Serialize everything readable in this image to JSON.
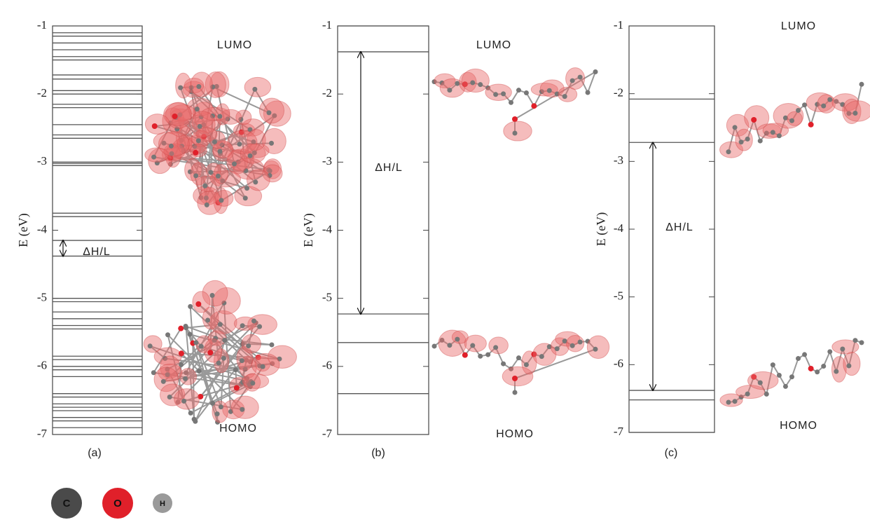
{
  "chart_data": [
    {
      "type": "energy-levels",
      "ylabel": "E (eV)",
      "ylim": [
        -7,
        -1
      ],
      "yticks": [
        -1,
        -2,
        -3,
        -4,
        -5,
        -6,
        -7
      ],
      "levels": [
        -1.1,
        -1.15,
        -1.25,
        -1.35,
        -1.45,
        -1.5,
        -1.72,
        -1.78,
        -1.95,
        -2.0,
        -2.15,
        -2.2,
        -2.45,
        -2.6,
        -2.65,
        -3.0,
        -3.02,
        -3.05,
        -3.75,
        -3.8,
        -4.15,
        -4.38,
        -5.0,
        -5.05,
        -5.2,
        -5.3,
        -5.4,
        -5.45,
        -5.85,
        -5.9,
        -6.0,
        -6.05,
        -6.15,
        -6.4,
        -6.45,
        -6.55,
        -6.6,
        -6.65,
        -6.75,
        -6.8,
        -6.9
      ],
      "gap": {
        "label": "ΔH/L",
        "homo": -4.38,
        "lumo": -4.15
      },
      "lumo_label": "LUMO",
      "homo_label": "HOMO",
      "caption": "(a)",
      "color": "#555555"
    },
    {
      "type": "energy-levels",
      "ylabel": "E (eV)",
      "ylim": [
        -7,
        -1
      ],
      "yticks": [
        -1,
        -2,
        -3,
        -4,
        -5,
        -6,
        -7
      ],
      "levels": [
        -1.0,
        -1.38,
        -5.23,
        -5.65,
        -6.4
      ],
      "gap": {
        "label": "ΔH/L",
        "homo": -5.23,
        "lumo": -1.38
      },
      "lumo_label": "LUMO",
      "homo_label": "HOMO",
      "caption": "(b)",
      "color": "#555555"
    },
    {
      "type": "energy-levels",
      "ylabel": "E (eV)",
      "ylim": [
        -7,
        -1
      ],
      "yticks": [
        -1,
        -2,
        -3,
        -4,
        -5,
        -6,
        -7
      ],
      "levels": [
        -2.08,
        -2.72,
        -6.38,
        -6.52,
        -7.0
      ],
      "gap": {
        "label": "ΔH/L",
        "homo": -6.38,
        "lumo": -2.72
      },
      "lumo_label": "LUMO",
      "homo_label": "HOMO",
      "caption": "(c)",
      "color": "#555555"
    }
  ],
  "atom_legend": [
    {
      "name": "C",
      "color": "#4a4a4a"
    },
    {
      "name": "O",
      "color": "#e0202a"
    },
    {
      "name": "H",
      "color": "#9a9a9a"
    }
  ]
}
